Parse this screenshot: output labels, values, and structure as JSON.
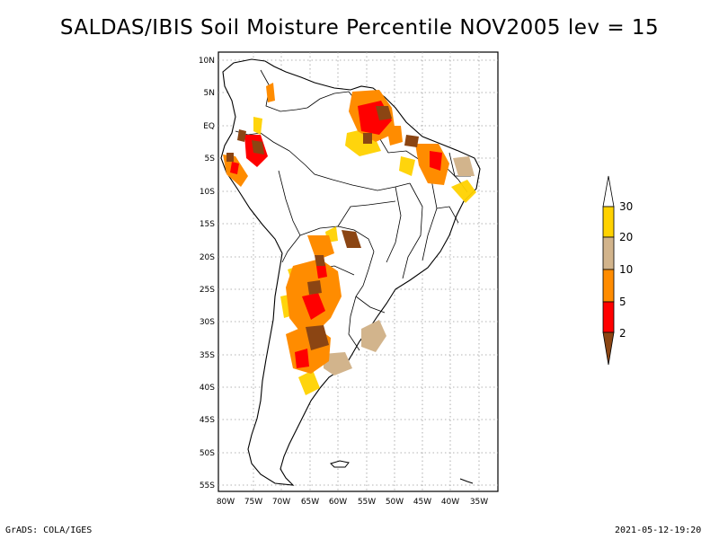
{
  "title": "SALDAS/IBIS Soil Moisture Percentile NOV2005 lev = 15",
  "map": {
    "region": "South America",
    "lat_labels": [
      "10N",
      "5N",
      "EQ",
      "5S",
      "10S",
      "15S",
      "20S",
      "25S",
      "30S",
      "35S",
      "40S",
      "45S",
      "50S",
      "55S"
    ],
    "lon_labels": [
      "80W",
      "75W",
      "70W",
      "65W",
      "60W",
      "55W",
      "50W",
      "45W",
      "40W",
      "35W"
    ]
  },
  "legend": {
    "labels": [
      "30",
      "20",
      "10",
      "5",
      "2"
    ],
    "colors": {
      "gt30": "#ffffff",
      "20_30": "#ffd200",
      "10_20": "#d2b48c",
      "5_10": "#ff8c00",
      "2_5": "#ff0000",
      "lt2": "#8b4513"
    }
  },
  "footer": {
    "left": "GrADS: COLA/IGES",
    "right": "2021-05-12-19:20"
  }
}
